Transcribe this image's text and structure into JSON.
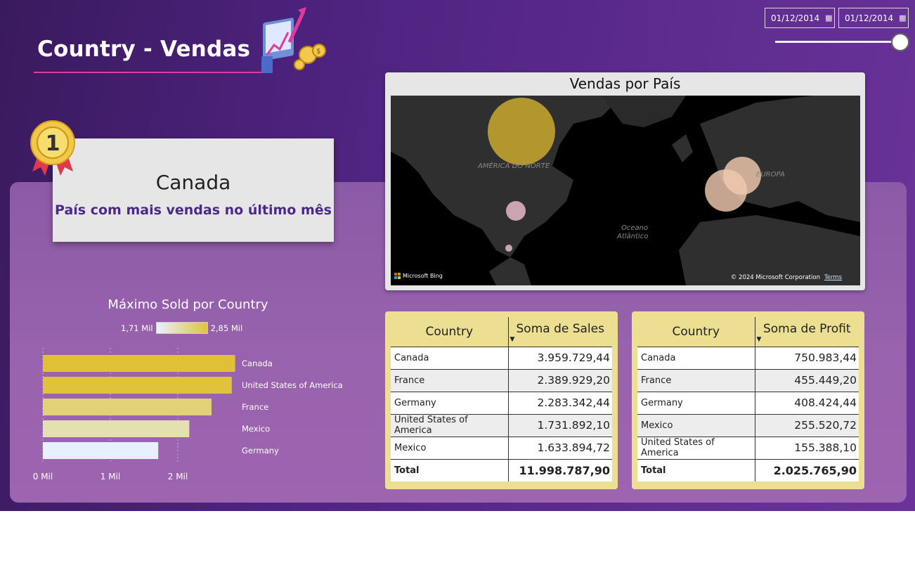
{
  "header": {
    "title": "Country - Vendas"
  },
  "filters": {
    "date_start": "01/12/2014",
    "date_end": "01/12/2014"
  },
  "top_card": {
    "rank_badge": "1",
    "country": "Canada",
    "subtitle": "País com mais vendas no último mês"
  },
  "map": {
    "title": "Vendas por País",
    "labels": {
      "north_america": "AMÉRICA DO NORTE",
      "ocean_line1": "Oceano",
      "ocean_line2": "Atlântico",
      "europe": "EUROPA"
    },
    "provider": "Microsoft Bing",
    "copyright": "© 2024 Microsoft Corporation",
    "terms": "Terms"
  },
  "bar_chart": {
    "title": "Máximo Sold por Country",
    "legend_min": "1,71 Mil",
    "legend_max": "2,85 Mil"
  },
  "chart_data": {
    "type": "bar",
    "orientation": "horizontal",
    "title": "Máximo Sold por Country",
    "categories": [
      "Canada",
      "United States of America",
      "France",
      "Mexico",
      "Germany"
    ],
    "values": [
      2850,
      2800,
      2500,
      2170,
      1710
    ],
    "x_ticks": [
      "0 Mil",
      "1 Mil",
      "2 Mil"
    ],
    "xlim": [
      0,
      3000
    ],
    "colors": [
      "#e0c136",
      "#e0c23c",
      "#e2d277",
      "#e4e0b0",
      "#e6f0fe"
    ],
    "grid": true
  },
  "sales_table": {
    "headers": [
      "Country",
      "Soma de Sales"
    ],
    "rows": [
      [
        "Canada",
        "3.959.729,44"
      ],
      [
        "France",
        "2.389.929,20"
      ],
      [
        "Germany",
        "2.283.342,44"
      ],
      [
        "United States of America",
        "1.731.892,10"
      ],
      [
        "Mexico",
        "1.633.894,72"
      ]
    ],
    "total_label": "Total",
    "total_value": "11.998.787,90"
  },
  "profit_table": {
    "headers": [
      "Country",
      "Soma de Profit"
    ],
    "rows": [
      [
        "Canada",
        "750.983,44"
      ],
      [
        "France",
        "455.449,20"
      ],
      [
        "Germany",
        "408.424,44"
      ],
      [
        "Mexico",
        "255.520,72"
      ],
      [
        "United States of America",
        "155.388,10"
      ]
    ],
    "total_label": "Total",
    "total_value": "2.025.765,90"
  },
  "colors": {
    "accent": "#e23a9a",
    "subtitle": "#4a2a86",
    "table_header": "#ecdf92"
  }
}
